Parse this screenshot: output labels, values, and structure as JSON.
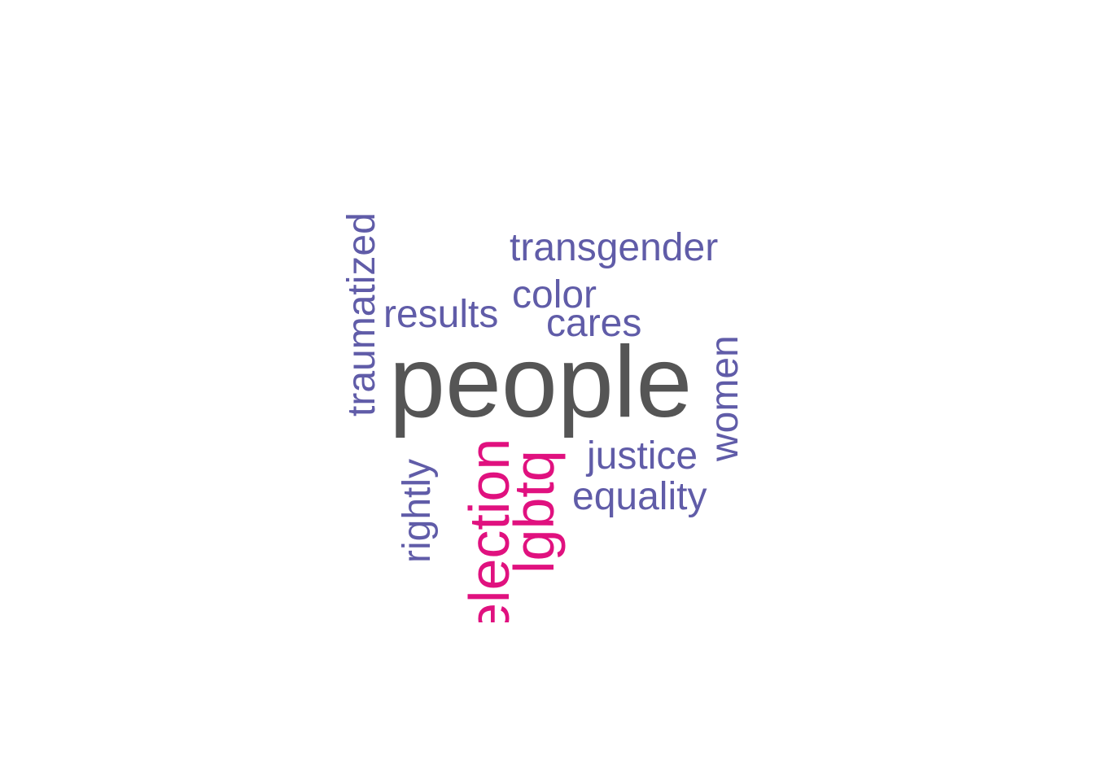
{
  "word_cloud": {
    "colors": {
      "dominant": "#555555",
      "secondary": "#E0117F",
      "tertiary": "#605CA8"
    },
    "words": [
      {
        "text": "people",
        "color": "#555555",
        "vertical": false
      },
      {
        "text": "election",
        "color": "#E0117F",
        "vertical": true
      },
      {
        "text": "lgbtq",
        "color": "#E0117F",
        "vertical": true
      },
      {
        "text": "transgender",
        "color": "#605CA8",
        "vertical": false
      },
      {
        "text": "traumatized",
        "color": "#605CA8",
        "vertical": true
      },
      {
        "text": "color",
        "color": "#605CA8",
        "vertical": false
      },
      {
        "text": "results",
        "color": "#605CA8",
        "vertical": false
      },
      {
        "text": "cares",
        "color": "#605CA8",
        "vertical": false
      },
      {
        "text": "women",
        "color": "#605CA8",
        "vertical": true
      },
      {
        "text": "justice",
        "color": "#605CA8",
        "vertical": false
      },
      {
        "text": "equality",
        "color": "#605CA8",
        "vertical": false
      },
      {
        "text": "rightly",
        "color": "#605CA8",
        "vertical": true
      }
    ]
  }
}
